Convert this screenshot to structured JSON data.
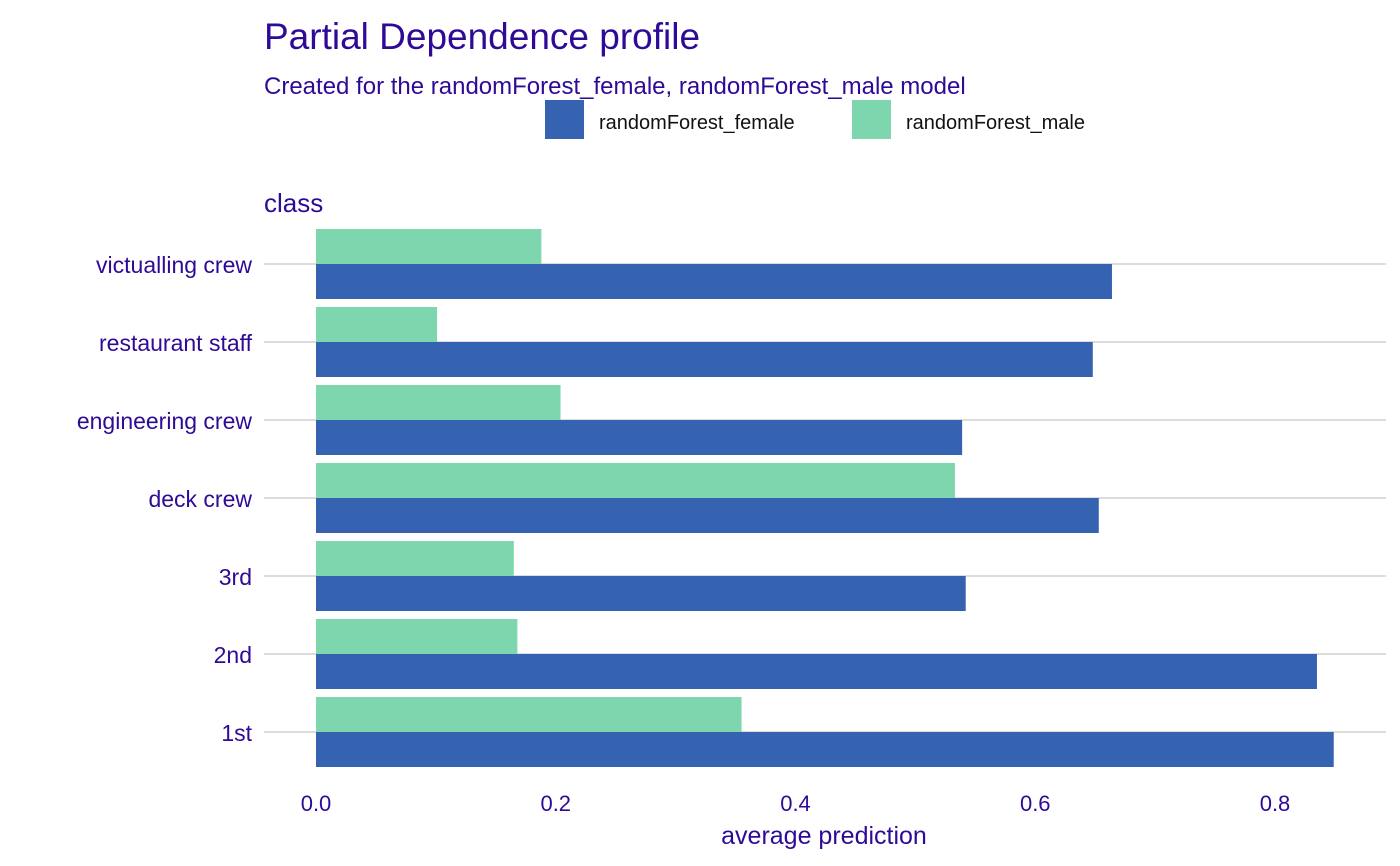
{
  "chart_data": {
    "type": "bar",
    "title": "Partial Dependence profile",
    "subtitle": "Created for the randomForest_female, randomForest_male model",
    "panel_label": "class",
    "xlabel": "average prediction",
    "ylabel": "",
    "xlim": [
      -0.035,
      0.87
    ],
    "xticks": [
      0.0,
      0.2,
      0.4,
      0.6,
      0.8
    ],
    "xtick_labels": [
      "0.0",
      "0.2",
      "0.4",
      "0.6",
      "0.8"
    ],
    "orientation": "horizontal",
    "grid": "horizontal lines at categories",
    "legend_position": "top",
    "categories": [
      "victualling crew",
      "restaurant staff",
      "engineering crew",
      "deck crew",
      "3rd",
      "2nd",
      "1st"
    ],
    "series": [
      {
        "name": "randomForest_female",
        "color": "#3563B1",
        "values": [
          0.664,
          0.648,
          0.539,
          0.653,
          0.542,
          0.835,
          0.849
        ]
      },
      {
        "name": "randomForest_male",
        "color": "#7DD6AE",
        "values": [
          0.188,
          0.101,
          0.204,
          0.533,
          0.165,
          0.168,
          0.355
        ]
      }
    ]
  },
  "colors": {
    "text": "#2E0A96",
    "grid": "#DDDDDD"
  }
}
